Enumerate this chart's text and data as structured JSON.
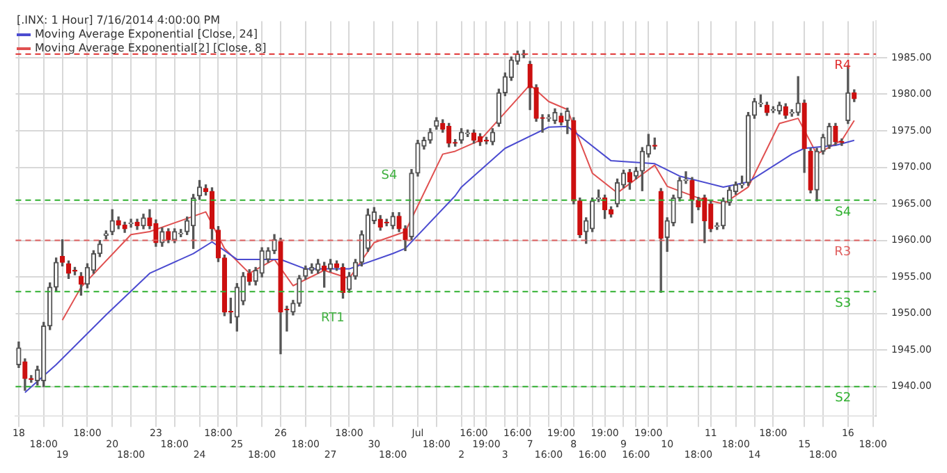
{
  "chart_data": {
    "type": "candlestick",
    "title": "[.INX: 1 Hour] 7/16/2014 4:00:00 PM",
    "categories": [
      "18",
      null,
      null,
      null,
      "18:00",
      null,
      null,
      "19",
      null,
      null,
      null,
      "18:00",
      null,
      null,
      null,
      "20",
      null,
      null,
      "18:00",
      null,
      null,
      null,
      "23",
      null,
      null,
      "18:00",
      null,
      null,
      null,
      "24",
      null,
      null,
      "18:00",
      null,
      null,
      "25",
      null,
      null,
      null,
      "18:00",
      null,
      null,
      "26",
      null,
      null,
      null,
      "18:00",
      null,
      null,
      null,
      "27",
      null,
      null,
      "18:00",
      null,
      null,
      null,
      "30",
      null,
      null,
      "18:00",
      null,
      null,
      null,
      "Jul",
      null,
      null,
      "18:00",
      null,
      null,
      null,
      "2",
      null,
      "16:00",
      null,
      "19:00",
      null,
      null,
      "3",
      null,
      "16:00",
      null,
      "7",
      null,
      null,
      "16:00",
      null,
      "19:00",
      null,
      "8",
      null,
      null,
      "16:00",
      null,
      "19:00",
      null,
      null,
      "9",
      null,
      "16:00",
      null,
      "19:00",
      null,
      null,
      "10",
      null,
      null,
      null,
      null,
      "18:00",
      null,
      "11",
      null,
      null,
      null,
      "18:00",
      null,
      null,
      "14",
      null,
      null,
      "18:00",
      null,
      null,
      null,
      null,
      "15",
      null,
      null,
      "18:00",
      null,
      null,
      null,
      "16",
      null,
      null,
      null,
      "18:00"
    ],
    "ohlc": [
      [
        1943.0,
        1946.1,
        1942.6,
        1945.3
      ],
      [
        1943.4,
        1943.8,
        1939.5,
        1941.1
      ],
      [
        1941.1,
        1941.5,
        1940.6,
        1941.0
      ],
      [
        1940.8,
        1942.8,
        1940.2,
        1942.3
      ],
      [
        1940.8,
        1948.8,
        1940.0,
        1948.3
      ],
      [
        1948.3,
        1954.2,
        1947.8,
        1953.6
      ],
      [
        1953.6,
        1957.6,
        1953.0,
        1957.0
      ],
      [
        1957.8,
        1960.1,
        1956.5,
        1957.0
      ],
      [
        1956.8,
        1957.2,
        1954.8,
        1955.5
      ],
      [
        1955.9,
        1956.3,
        1955.3,
        1955.8
      ],
      [
        1955.1,
        1955.6,
        1952.5,
        1954.0
      ],
      [
        1954.0,
        1956.8,
        1953.5,
        1956.3
      ],
      [
        1955.9,
        1958.6,
        1955.5,
        1958.2
      ],
      [
        1958.2,
        1960.0,
        1957.8,
        1959.5
      ],
      [
        1960.7,
        1961.3,
        1960.2,
        1960.9
      ],
      [
        1961.2,
        1964.2,
        1960.8,
        1962.7
      ],
      [
        1962.7,
        1963.2,
        1961.6,
        1962.1
      ],
      [
        1962.1,
        1962.5,
        1961.1,
        1961.6
      ],
      [
        1962.3,
        1962.9,
        1961.8,
        1962.4
      ],
      [
        1962.5,
        1962.9,
        1961.5,
        1962.0
      ],
      [
        1962.0,
        1963.6,
        1961.6,
        1963.1
      ],
      [
        1963.1,
        1964.2,
        1961.6,
        1962.0
      ],
      [
        1962.3,
        1962.8,
        1959.2,
        1959.7
      ],
      [
        1959.7,
        1961.7,
        1959.2,
        1961.2
      ],
      [
        1961.2,
        1961.6,
        1959.7,
        1960.1
      ],
      [
        1960.1,
        1961.6,
        1959.7,
        1961.2
      ],
      [
        1960.9,
        1961.5,
        1960.5,
        1961.0
      ],
      [
        1961.2,
        1963.2,
        1960.8,
        1962.7
      ],
      [
        1962.0,
        1966.3,
        1958.9,
        1965.8
      ],
      [
        1966.1,
        1968.2,
        1965.6,
        1967.3
      ],
      [
        1967.1,
        1967.6,
        1966.2,
        1966.7
      ],
      [
        1966.7,
        1967.2,
        1960.1,
        1961.6
      ],
      [
        1961.4,
        1961.9,
        1957.1,
        1957.6
      ],
      [
        1957.6,
        1958.0,
        1949.7,
        1950.2
      ],
      [
        1950.3,
        1952.1,
        1948.7,
        1950.2
      ],
      [
        1949.5,
        1954.1,
        1947.6,
        1953.6
      ],
      [
        1951.7,
        1955.6,
        1951.2,
        1955.1
      ],
      [
        1955.5,
        1956.0,
        1953.9,
        1954.4
      ],
      [
        1954.4,
        1956.3,
        1953.9,
        1955.9
      ],
      [
        1955.5,
        1959.0,
        1955.0,
        1958.6
      ],
      [
        1957.4,
        1959.0,
        1957.0,
        1958.6
      ],
      [
        1958.6,
        1960.8,
        1958.2,
        1960.1
      ],
      [
        1959.8,
        1960.3,
        1944.5,
        1950.2
      ],
      [
        1950.6,
        1951.0,
        1947.6,
        1950.5
      ],
      [
        1950.2,
        1951.8,
        1949.8,
        1951.4
      ],
      [
        1951.4,
        1955.2,
        1951.0,
        1954.8
      ],
      [
        1955.1,
        1956.5,
        1954.7,
        1956.1
      ],
      [
        1955.9,
        1956.8,
        1955.5,
        1956.3
      ],
      [
        1955.9,
        1957.4,
        1955.5,
        1956.8
      ],
      [
        1956.5,
        1957.0,
        1953.6,
        1955.9
      ],
      [
        1956.1,
        1957.4,
        1955.7,
        1956.8
      ],
      [
        1956.8,
        1957.2,
        1955.9,
        1956.3
      ],
      [
        1956.3,
        1956.8,
        1952.1,
        1952.9
      ],
      [
        1953.3,
        1955.6,
        1952.9,
        1955.1
      ],
      [
        1955.1,
        1957.4,
        1954.7,
        1957.0
      ],
      [
        1957.0,
        1961.3,
        1956.5,
        1960.8
      ],
      [
        1958.9,
        1964.3,
        1958.5,
        1963.5
      ],
      [
        1962.7,
        1964.5,
        1962.3,
        1963.9
      ],
      [
        1962.9,
        1963.4,
        1961.4,
        1961.8
      ],
      [
        1962.5,
        1962.9,
        1962.0,
        1962.4
      ],
      [
        1962.0,
        1963.8,
        1961.6,
        1963.3
      ],
      [
        1963.3,
        1963.8,
        1961.2,
        1961.6
      ],
      [
        1961.6,
        1962.0,
        1958.6,
        1960.1
      ],
      [
        1960.5,
        1969.7,
        1960.1,
        1969.2
      ],
      [
        1969.2,
        1973.7,
        1968.8,
        1973.3
      ],
      [
        1972.9,
        1974.1,
        1972.5,
        1973.7
      ],
      [
        1973.7,
        1975.3,
        1973.3,
        1974.8
      ],
      [
        1975.6,
        1976.8,
        1975.2,
        1976.4
      ],
      [
        1976.0,
        1976.5,
        1974.8,
        1975.2
      ],
      [
        1975.6,
        1976.0,
        1972.8,
        1973.3
      ],
      [
        1973.4,
        1973.8,
        1972.9,
        1973.3
      ],
      [
        1973.7,
        1975.3,
        1973.3,
        1974.8
      ],
      [
        1974.6,
        1975.1,
        1974.2,
        1974.7
      ],
      [
        1974.7,
        1975.1,
        1973.3,
        1973.7
      ],
      [
        1974.2,
        1974.6,
        1973.0,
        1973.5
      ],
      [
        1973.7,
        1974.1,
        1973.2,
        1973.6
      ],
      [
        1973.5,
        1975.3,
        1973.1,
        1974.8
      ],
      [
        1976.0,
        1980.7,
        1975.6,
        1980.2
      ],
      [
        1980.2,
        1982.9,
        1979.8,
        1982.4
      ],
      [
        1982.3,
        1985.1,
        1981.9,
        1984.7
      ],
      [
        1984.5,
        1985.9,
        1984.1,
        1985.5
      ],
      [
        1985.4,
        1986.0,
        1985.0,
        1985.5
      ],
      [
        1984.1,
        1984.5,
        1977.9,
        1980.9
      ],
      [
        1980.9,
        1981.3,
        1976.3,
        1976.7
      ],
      [
        1976.8,
        1977.2,
        1974.8,
        1976.7
      ],
      [
        1976.7,
        1977.2,
        1976.3,
        1976.8
      ],
      [
        1976.4,
        1978.0,
        1976.0,
        1977.5
      ],
      [
        1977.0,
        1977.4,
        1975.8,
        1976.2
      ],
      [
        1976.4,
        1978.1,
        1974.6,
        1977.7
      ],
      [
        1976.4,
        1976.8,
        1965.0,
        1965.4
      ],
      [
        1965.4,
        1965.8,
        1960.4,
        1960.8
      ],
      [
        1961.2,
        1963.1,
        1959.6,
        1962.7
      ],
      [
        1961.6,
        1965.8,
        1961.2,
        1965.4
      ],
      [
        1965.7,
        1966.9,
        1965.3,
        1965.8
      ],
      [
        1965.8,
        1966.2,
        1963.0,
        1964.2
      ],
      [
        1964.2,
        1964.6,
        1963.2,
        1963.6
      ],
      [
        1965.0,
        1968.4,
        1964.6,
        1967.9
      ],
      [
        1967.6,
        1969.6,
        1967.2,
        1969.2
      ],
      [
        1969.3,
        1969.7,
        1967.0,
        1968.0
      ],
      [
        1968.8,
        1970.0,
        1968.4,
        1969.5
      ],
      [
        1969.5,
        1972.7,
        1966.8,
        1972.2
      ],
      [
        1971.8,
        1974.5,
        1971.4,
        1973.0
      ],
      [
        1973.0,
        1974.0,
        1972.5,
        1972.9
      ],
      [
        1966.7,
        1967.1,
        1952.9,
        1960.3
      ],
      [
        1960.4,
        1963.1,
        1958.5,
        1962.7
      ],
      [
        1962.4,
        1966.2,
        1962.0,
        1965.8
      ],
      [
        1965.8,
        1968.6,
        1965.4,
        1968.2
      ],
      [
        1968.2,
        1969.4,
        1967.8,
        1968.3
      ],
      [
        1968.2,
        1968.6,
        1962.4,
        1965.5
      ],
      [
        1965.5,
        1965.9,
        1964.2,
        1964.6
      ],
      [
        1965.8,
        1966.2,
        1959.7,
        1962.7
      ],
      [
        1965.0,
        1965.4,
        1961.2,
        1961.6
      ],
      [
        1961.9,
        1962.4,
        1961.5,
        1962.0
      ],
      [
        1962.0,
        1965.8,
        1961.6,
        1965.4
      ],
      [
        1965.2,
        1967.3,
        1964.8,
        1966.9
      ],
      [
        1966.7,
        1968.0,
        1966.3,
        1967.6
      ],
      [
        1967.6,
        1968.8,
        1967.2,
        1967.7
      ],
      [
        1967.9,
        1977.5,
        1967.5,
        1977.1
      ],
      [
        1977.1,
        1979.4,
        1976.7,
        1979.0
      ],
      [
        1978.7,
        1979.9,
        1978.3,
        1978.8
      ],
      [
        1978.5,
        1978.9,
        1977.1,
        1977.5
      ],
      [
        1977.8,
        1978.3,
        1977.5,
        1977.9
      ],
      [
        1977.7,
        1978.9,
        1977.3,
        1978.5
      ],
      [
        1978.3,
        1978.7,
        1976.7,
        1977.1
      ],
      [
        1977.4,
        1977.9,
        1977.0,
        1977.5
      ],
      [
        1977.5,
        1982.4,
        1977.1,
        1978.8
      ],
      [
        1978.8,
        1979.2,
        1969.3,
        1972.6
      ],
      [
        1972.2,
        1972.6,
        1966.5,
        1966.9
      ],
      [
        1966.9,
        1972.6,
        1965.4,
        1972.2
      ],
      [
        1972.2,
        1974.5,
        1971.8,
        1974.1
      ],
      [
        1973.0,
        1976.0,
        1972.6,
        1975.6
      ],
      [
        1975.6,
        1976.0,
        1973.1,
        1973.5
      ],
      [
        1973.5,
        1973.9,
        1973.0,
        1973.4
      ],
      [
        1976.4,
        1983.9,
        1976.0,
        1980.2
      ],
      [
        1980.2,
        1980.6,
        1979.0,
        1979.4
      ],
      null,
      null,
      null
    ],
    "series": [
      {
        "name": "Moving Average Exponential [Close, 24]",
        "type": "line",
        "color": "#4b4bd0",
        "values": [
          null,
          1939.2,
          null,
          null,
          null,
          null,
          1943.0,
          null,
          null,
          null,
          null,
          null,
          null,
          null,
          1949.8,
          null,
          null,
          null,
          null,
          null,
          null,
          1955.5,
          null,
          null,
          null,
          null,
          null,
          null,
          1958.2,
          null,
          null,
          1959.8,
          null,
          null,
          null,
          1957.4,
          null,
          null,
          null,
          null,
          null,
          null,
          1957.4,
          null,
          null,
          null,
          1956.1,
          null,
          null,
          null,
          null,
          null,
          null,
          1956.1,
          null,
          null,
          null,
          null,
          null,
          null,
          1958.2,
          null,
          1958.9,
          null,
          null,
          null,
          null,
          null,
          null,
          null,
          1966.1,
          1967.3,
          null,
          null,
          null,
          null,
          null,
          null,
          1972.6,
          null,
          null,
          null,
          null,
          null,
          null,
          1975.5,
          null,
          null,
          1975.6,
          null,
          null,
          null,
          null,
          null,
          null,
          1970.9,
          null,
          null,
          null,
          null,
          null,
          null,
          1970.5,
          null,
          null,
          null,
          1968.8,
          null,
          null,
          null,
          null,
          null,
          null,
          1967.3,
          null,
          null,
          null,
          1968.0,
          null,
          null,
          null,
          null,
          null,
          null,
          1971.8,
          null,
          1972.6,
          null,
          null,
          null,
          null,
          1973.0,
          null,
          null,
          1973.7,
          null,
          null,
          null
        ]
      },
      {
        "name": "Moving Average Exponential[2] [Close, 8]",
        "type": "line",
        "color": "#e05050",
        "values": [
          null,
          null,
          null,
          null,
          null,
          null,
          null,
          1949.1,
          null,
          null,
          1953.6,
          null,
          null,
          null,
          null,
          null,
          null,
          null,
          1960.8,
          null,
          null,
          1961.2,
          null,
          null,
          null,
          null,
          null,
          null,
          null,
          null,
          1963.9,
          null,
          null,
          1958.9,
          null,
          null,
          null,
          1955.5,
          null,
          null,
          null,
          1957.4,
          null,
          null,
          1953.8,
          null,
          null,
          null,
          null,
          1955.9,
          null,
          null,
          null,
          1954.8,
          null,
          null,
          null,
          1959.7,
          null,
          null,
          null,
          null,
          1961.2,
          null,
          null,
          null,
          null,
          null,
          1971.8,
          null,
          1972.2,
          null,
          null,
          null,
          1973.7,
          null,
          null,
          null,
          null,
          null,
          null,
          null,
          1981.3,
          null,
          null,
          1979.0,
          null,
          null,
          1977.9,
          null,
          null,
          null,
          1969.2,
          null,
          null,
          null,
          1966.5,
          null,
          null,
          null,
          null,
          null,
          1970.3,
          null,
          1967.4,
          null,
          null,
          null,
          null,
          1965.8,
          null,
          null,
          null,
          1965.0,
          null,
          null,
          null,
          1967.3,
          null,
          null,
          null,
          null,
          1976.0,
          null,
          null,
          1976.7,
          null,
          null,
          1971.8,
          null,
          null,
          null,
          1973.7,
          null,
          1976.4,
          null,
          null,
          null
        ]
      }
    ],
    "ylim": [
      1936,
      1990
    ],
    "yticks": [
      {
        "value": 1940,
        "label": "1940.00"
      },
      {
        "value": 1945,
        "label": "1945.00"
      },
      {
        "value": 1950,
        "label": "1950.00"
      },
      {
        "value": 1955,
        "label": "1955.00"
      },
      {
        "value": 1960,
        "label": "1960.00"
      },
      {
        "value": 1965,
        "label": "1965.00"
      },
      {
        "value": 1970,
        "label": "1970.00"
      },
      {
        "value": 1975,
        "label": "1975.00"
      },
      {
        "value": 1980,
        "label": "1980.00"
      },
      {
        "value": 1985,
        "label": "1985.00"
      }
    ],
    "ref_lines": [
      {
        "axis": "y",
        "value": 1985.5,
        "label": "R4",
        "color": "#e03030",
        "line_style": "dashed"
      },
      {
        "axis": "y",
        "value": 1960,
        "label": "R3",
        "color": "#e06060",
        "line_style": "dashed"
      },
      {
        "axis": "y",
        "value": 1965.5,
        "label": "S4",
        "color": "#30b030",
        "line_style": "dashed"
      },
      {
        "axis": "y",
        "value": 1953,
        "label": "S3",
        "color": "#30b030",
        "line_style": "dashed"
      },
      {
        "axis": "y",
        "value": 1940,
        "label": "S2",
        "color": "#30b030",
        "line_style": "dashed"
      }
    ],
    "annotations": [
      "RT1",
      "S4"
    ],
    "grid": true,
    "legend": "top left"
  }
}
